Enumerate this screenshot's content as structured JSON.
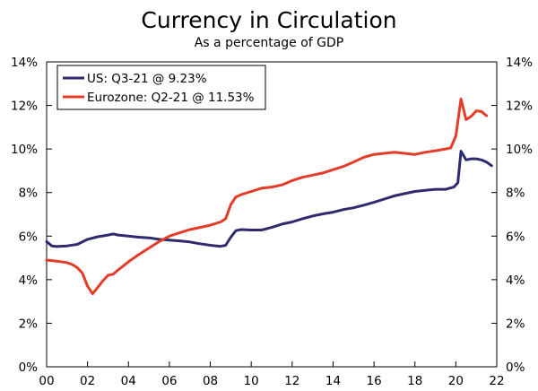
{
  "chart_data": {
    "type": "line",
    "title": "Currency in Circulation",
    "subtitle": "As a percentage of GDP",
    "xlabel": "",
    "ylabel": "",
    "x_ticks": [
      "00",
      "02",
      "04",
      "06",
      "08",
      "10",
      "12",
      "14",
      "16",
      "18",
      "20",
      "22"
    ],
    "y_ticks": [
      "0%",
      "2%",
      "4%",
      "6%",
      "8%",
      "10%",
      "12%",
      "14%"
    ],
    "ylim": [
      0,
      14
    ],
    "xlim": [
      2000,
      2022
    ],
    "grid": false,
    "legend_position": "top-left",
    "series": [
      {
        "name": "US: Q3-21 @ 9.23%",
        "color": "#2e2a6e",
        "points": [
          [
            2000.0,
            5.75
          ],
          [
            2000.25,
            5.55
          ],
          [
            2000.5,
            5.52
          ],
          [
            2001.0,
            5.55
          ],
          [
            2001.5,
            5.62
          ],
          [
            2002.0,
            5.85
          ],
          [
            2002.5,
            5.97
          ],
          [
            2003.0,
            6.05
          ],
          [
            2003.25,
            6.1
          ],
          [
            2003.5,
            6.05
          ],
          [
            2004.0,
            6.0
          ],
          [
            2004.5,
            5.95
          ],
          [
            2005.0,
            5.92
          ],
          [
            2005.5,
            5.85
          ],
          [
            2006.0,
            5.82
          ],
          [
            2006.5,
            5.78
          ],
          [
            2007.0,
            5.73
          ],
          [
            2007.5,
            5.65
          ],
          [
            2008.0,
            5.58
          ],
          [
            2008.5,
            5.53
          ],
          [
            2008.75,
            5.58
          ],
          [
            2009.0,
            5.95
          ],
          [
            2009.25,
            6.25
          ],
          [
            2009.5,
            6.3
          ],
          [
            2010.0,
            6.28
          ],
          [
            2010.5,
            6.28
          ],
          [
            2011.0,
            6.4
          ],
          [
            2011.5,
            6.55
          ],
          [
            2012.0,
            6.65
          ],
          [
            2012.5,
            6.8
          ],
          [
            2013.0,
            6.92
          ],
          [
            2013.5,
            7.02
          ],
          [
            2014.0,
            7.1
          ],
          [
            2014.5,
            7.22
          ],
          [
            2015.0,
            7.3
          ],
          [
            2015.5,
            7.42
          ],
          [
            2016.0,
            7.55
          ],
          [
            2016.5,
            7.7
          ],
          [
            2017.0,
            7.85
          ],
          [
            2017.5,
            7.95
          ],
          [
            2018.0,
            8.05
          ],
          [
            2018.5,
            8.1
          ],
          [
            2019.0,
            8.15
          ],
          [
            2019.5,
            8.15
          ],
          [
            2019.9,
            8.25
          ],
          [
            2020.1,
            8.45
          ],
          [
            2020.25,
            9.9
          ],
          [
            2020.5,
            9.5
          ],
          [
            2020.75,
            9.55
          ],
          [
            2021.0,
            9.55
          ],
          [
            2021.25,
            9.5
          ],
          [
            2021.5,
            9.4
          ],
          [
            2021.75,
            9.23
          ]
        ]
      },
      {
        "name": "Eurozone: Q2-21 @ 11.53%",
        "color": "#e23d28",
        "points": [
          [
            2000.0,
            4.9
          ],
          [
            2000.5,
            4.85
          ],
          [
            2001.0,
            4.78
          ],
          [
            2001.25,
            4.7
          ],
          [
            2001.5,
            4.55
          ],
          [
            2001.75,
            4.3
          ],
          [
            2002.0,
            3.7
          ],
          [
            2002.25,
            3.35
          ],
          [
            2002.5,
            3.65
          ],
          [
            2002.75,
            3.95
          ],
          [
            2003.0,
            4.2
          ],
          [
            2003.25,
            4.25
          ],
          [
            2003.5,
            4.45
          ],
          [
            2004.0,
            4.82
          ],
          [
            2004.5,
            5.15
          ],
          [
            2005.0,
            5.45
          ],
          [
            2005.5,
            5.75
          ],
          [
            2006.0,
            6.0
          ],
          [
            2006.5,
            6.15
          ],
          [
            2007.0,
            6.3
          ],
          [
            2007.5,
            6.4
          ],
          [
            2008.0,
            6.5
          ],
          [
            2008.5,
            6.65
          ],
          [
            2008.75,
            6.8
          ],
          [
            2009.0,
            7.45
          ],
          [
            2009.25,
            7.8
          ],
          [
            2009.5,
            7.9
          ],
          [
            2010.0,
            8.05
          ],
          [
            2010.5,
            8.2
          ],
          [
            2011.0,
            8.25
          ],
          [
            2011.5,
            8.35
          ],
          [
            2012.0,
            8.55
          ],
          [
            2012.5,
            8.7
          ],
          [
            2013.0,
            8.8
          ],
          [
            2013.5,
            8.9
          ],
          [
            2014.0,
            9.05
          ],
          [
            2014.5,
            9.2
          ],
          [
            2015.0,
            9.4
          ],
          [
            2015.5,
            9.62
          ],
          [
            2016.0,
            9.75
          ],
          [
            2016.5,
            9.8
          ],
          [
            2017.0,
            9.85
          ],
          [
            2017.5,
            9.8
          ],
          [
            2018.0,
            9.75
          ],
          [
            2018.5,
            9.85
          ],
          [
            2019.0,
            9.92
          ],
          [
            2019.5,
            10.0
          ],
          [
            2019.75,
            10.05
          ],
          [
            2020.0,
            10.6
          ],
          [
            2020.25,
            12.3
          ],
          [
            2020.5,
            11.35
          ],
          [
            2020.75,
            11.5
          ],
          [
            2021.0,
            11.75
          ],
          [
            2021.25,
            11.72
          ],
          [
            2021.5,
            11.53
          ]
        ]
      }
    ]
  }
}
